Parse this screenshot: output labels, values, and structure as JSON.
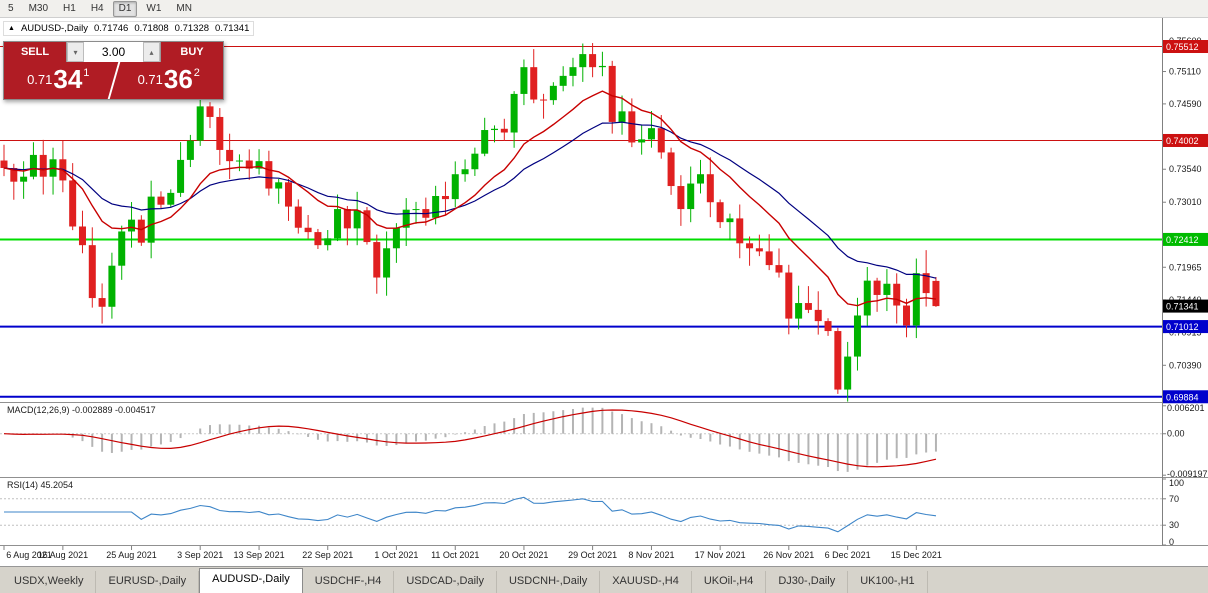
{
  "toolbar": {
    "timeframes": [
      {
        "label": "5",
        "active": false
      },
      {
        "label": "M30",
        "active": false
      },
      {
        "label": "H1",
        "active": false
      },
      {
        "label": "H4",
        "active": false
      },
      {
        "label": "D1",
        "active": true
      },
      {
        "label": "W1",
        "active": false
      },
      {
        "label": "MN",
        "active": false
      }
    ]
  },
  "quote_bar": {
    "symbol": "AUDUSD-,Daily",
    "open": "0.71746",
    "high": "0.71808",
    "low": "0.71328",
    "close": "0.71341"
  },
  "trade_panel": {
    "sell_label": "SELL",
    "buy_label": "BUY",
    "volume": "3.00",
    "sell_price": {
      "base": "0.71",
      "big": "34",
      "sup": "1"
    },
    "buy_price": {
      "base": "0.71",
      "big": "36",
      "sup": "2"
    }
  },
  "colors": {
    "candle_up": "#00b200",
    "candle_down": "#e02020",
    "ma_fast": "#c80000",
    "ma_slow": "#000080",
    "macd_hist": "#b4b4b4",
    "macd_signal": "#c80000",
    "rsi_line": "#3d85c8",
    "level_red": "#cc1111",
    "level_green": "#00dd00",
    "level_blue": "#0000cc",
    "trade_red": "#b01c24"
  },
  "hlines": [
    {
      "price": 0.75512,
      "color": "#cc1111",
      "width": 1
    },
    {
      "price": 0.74002,
      "color": "#cc1111",
      "width": 1
    },
    {
      "price": 0.72412,
      "color": "#00dd00",
      "width": 2
    },
    {
      "price": 0.71012,
      "color": "#0000cc",
      "width": 2
    },
    {
      "price": 0.69884,
      "color": "#0000cc",
      "width": 2
    }
  ],
  "price_axis": {
    "labels": [
      {
        "text": "0.75600",
        "price": 0.756
      },
      {
        "text": "0.75110",
        "price": 0.7511
      },
      {
        "text": "0.74590",
        "price": 0.7459
      },
      {
        "text": "0.73540",
        "price": 0.7354
      },
      {
        "text": "0.73010",
        "price": 0.7301
      },
      {
        "text": "0.71965",
        "price": 0.71965
      },
      {
        "text": "0.71440",
        "price": 0.7144
      },
      {
        "text": "0.70915",
        "price": 0.70915
      },
      {
        "text": "0.70390",
        "price": 0.7039
      }
    ],
    "boxes": [
      {
        "text": "0.75512",
        "price": 0.75512,
        "color": "#cc1111"
      },
      {
        "text": "0.74002",
        "price": 0.74002,
        "color": "#cc1111"
      },
      {
        "text": "0.72412",
        "price": 0.72412,
        "color": "#00bb00"
      },
      {
        "text": "0.71341",
        "price": 0.71341,
        "color": "#000000"
      },
      {
        "text": "0.71012",
        "price": 0.71012,
        "color": "#0000cc"
      },
      {
        "text": "0.69884",
        "price": 0.69884,
        "color": "#0000cc"
      }
    ]
  },
  "indicators": {
    "macd": {
      "header": "MACD(12,26,9) -0.002889 -0.004517",
      "axis": [
        {
          "text": "0.006201",
          "value": 0.006201
        },
        {
          "text": "0.00",
          "value": 0
        },
        {
          "text": "-0.009197",
          "value": -0.009197
        }
      ]
    },
    "rsi": {
      "header": "RSI(14) 45.2054",
      "axis": [
        {
          "text": "100",
          "value": 100
        },
        {
          "text": "70",
          "value": 70
        },
        {
          "text": "30",
          "value": 30
        },
        {
          "text": "0",
          "value": 0
        }
      ],
      "levels": [
        70,
        30
      ]
    }
  },
  "chart_data": {
    "type": "candlestick",
    "symbol": "AUDUSD-",
    "timeframe": "Daily",
    "y_range": [
      0.698,
      0.7597
    ],
    "x_labels": [
      {
        "text": "6 Aug 2021",
        "index": 0
      },
      {
        "text": "16 Aug 2021",
        "index": 6
      },
      {
        "text": "25 Aug 2021",
        "index": 13
      },
      {
        "text": "3 Sep 2021",
        "index": 20
      },
      {
        "text": "13 Sep 2021",
        "index": 26
      },
      {
        "text": "22 Sep 2021",
        "index": 33
      },
      {
        "text": "1 Oct 2021",
        "index": 40
      },
      {
        "text": "11 Oct 2021",
        "index": 46
      },
      {
        "text": "20 Oct 2021",
        "index": 53
      },
      {
        "text": "29 Oct 2021",
        "index": 60
      },
      {
        "text": "8 Nov 2021",
        "index": 66
      },
      {
        "text": "17 Nov 2021",
        "index": 73
      },
      {
        "text": "26 Nov 2021",
        "index": 80
      },
      {
        "text": "6 Dec 2021",
        "index": 86
      },
      {
        "text": "15 Dec 2021",
        "index": 93
      }
    ],
    "closes": [
      0.7356,
      0.7334,
      0.7342,
      0.7377,
      0.7342,
      0.737,
      0.7336,
      0.7262,
      0.7232,
      0.7147,
      0.7133,
      0.7199,
      0.7254,
      0.7273,
      0.7236,
      0.731,
      0.7297,
      0.7316,
      0.7369,
      0.74,
      0.7455,
      0.7438,
      0.7385,
      0.7367,
      0.7368,
      0.7355,
      0.7367,
      0.7323,
      0.7333,
      0.7294,
      0.726,
      0.7253,
      0.7232,
      0.7243,
      0.729,
      0.7259,
      0.7288,
      0.7237,
      0.718,
      0.7227,
      0.726,
      0.7289,
      0.729,
      0.7276,
      0.7311,
      0.7306,
      0.7346,
      0.7354,
      0.7379,
      0.7417,
      0.7419,
      0.7413,
      0.7475,
      0.7518,
      0.7466,
      0.7465,
      0.7488,
      0.7504,
      0.7518,
      0.7539,
      0.7518,
      0.752,
      0.743,
      0.7447,
      0.7397,
      0.7402,
      0.742,
      0.7381,
      0.7327,
      0.729,
      0.7331,
      0.7346,
      0.7301,
      0.7269,
      0.7275,
      0.7235,
      0.7227,
      0.7222,
      0.72,
      0.7188,
      0.7114,
      0.7139,
      0.7128,
      0.711,
      0.7094,
      0.7,
      0.7053,
      0.7119,
      0.7175,
      0.7152,
      0.717,
      0.7135,
      0.7103,
      0.7187,
      0.7155,
      0.71341
    ],
    "current_ohlc": {
      "open": 0.71746,
      "high": 0.71808,
      "low": 0.71328,
      "close": 0.71341
    },
    "extreme_overrides": [
      {
        "index": 10,
        "low": 0.7106
      },
      {
        "index": 20,
        "high": 0.7478
      },
      {
        "index": 59,
        "high": 0.7556
      },
      {
        "index": 85,
        "low": 0.6993
      },
      {
        "index": 94,
        "high": 0.7224
      }
    ],
    "overlays": [
      {
        "name": "fast-ma",
        "period": 12,
        "color": "#c80000"
      },
      {
        "name": "slow-ma",
        "period": 24,
        "color": "#000080"
      }
    ]
  },
  "tabs": [
    {
      "label": "USDX,Weekly",
      "active": false
    },
    {
      "label": "EURUSD-,Daily",
      "active": false
    },
    {
      "label": "AUDUSD-,Daily",
      "active": true
    },
    {
      "label": "USDCHF-,H4",
      "active": false
    },
    {
      "label": "USDCAD-,Daily",
      "active": false
    },
    {
      "label": "USDCNH-,Daily",
      "active": false
    },
    {
      "label": "XAUUSD-,H4",
      "active": false
    },
    {
      "label": "UKOil-,H4",
      "active": false
    },
    {
      "label": "DJ30-,Daily",
      "active": false
    },
    {
      "label": "UK100-,H1",
      "active": false
    }
  ]
}
